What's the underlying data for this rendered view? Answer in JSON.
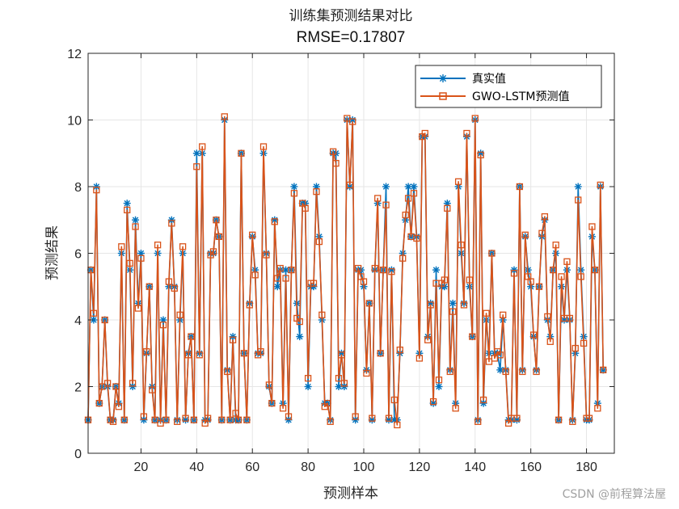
{
  "watermark": "CSDN @前程算法屋",
  "chart_data": {
    "type": "line",
    "title": "训练集预测结果对比",
    "subtitle": "RMSE=0.17807",
    "xlabel": "预测样本",
    "ylabel": "预测结果",
    "xlim": [
      1,
      190
    ],
    "ylim": [
      0,
      12
    ],
    "xticks": [
      20,
      40,
      60,
      80,
      100,
      120,
      140,
      160,
      180
    ],
    "yticks": [
      0,
      2,
      4,
      6,
      8,
      10,
      12
    ],
    "grid": true,
    "legend_position": "top-right",
    "colors": {
      "actual": "#0072BD",
      "predicted": "#D95319",
      "grid": "#e6e6e6",
      "axis": "#262626"
    },
    "series": [
      {
        "name": "真实值",
        "marker": "asterisk",
        "values": [
          1.0,
          5.5,
          4.0,
          8.0,
          1.5,
          2.0,
          4.0,
          2.0,
          1.0,
          1.0,
          2.0,
          1.5,
          6.0,
          1.0,
          7.5,
          5.5,
          2.0,
          7.0,
          4.5,
          6.0,
          1.0,
          3.0,
          5.0,
          2.0,
          1.0,
          6.0,
          1.0,
          4.0,
          1.0,
          5.0,
          7.0,
          5.0,
          1.0,
          4.0,
          6.0,
          1.0,
          3.0,
          3.5,
          1.0,
          9.0,
          3.0,
          9.0,
          1.0,
          1.0,
          6.0,
          6.0,
          7.0,
          6.5,
          1.0,
          10.0,
          2.5,
          1.0,
          3.5,
          1.0,
          1.0,
          9.0,
          3.0,
          1.0,
          4.5,
          6.5,
          5.5,
          3.0,
          3.0,
          9.0,
          6.0,
          2.0,
          1.5,
          7.0,
          5.0,
          5.5,
          1.5,
          5.5,
          1.0,
          5.5,
          8.0,
          4.5,
          3.5,
          7.5,
          7.5,
          2.0,
          5.0,
          5.0,
          8.0,
          6.5,
          4.0,
          1.5,
          1.5,
          1.0,
          9.0,
          9.0,
          2.0,
          3.0,
          2.0,
          10.0,
          8.0,
          10.0,
          1.0,
          5.5,
          5.5,
          5.0,
          2.5,
          4.5,
          1.0,
          5.5,
          7.5,
          3.0,
          5.5,
          8.0,
          1.0,
          5.5,
          1.0,
          1.0,
          3.0,
          6.0,
          7.0,
          8.0,
          6.5,
          8.0,
          6.5,
          3.0,
          9.5,
          9.5,
          3.5,
          4.5,
          1.5,
          5.5,
          2.0,
          5.0,
          5.0,
          7.5,
          2.5,
          4.5,
          1.5,
          8.0,
          6.0,
          4.5,
          9.5,
          5.0,
          3.5,
          10.0,
          1.0,
          9.0,
          1.5,
          4.0,
          3.0,
          6.0,
          3.0,
          3.0,
          2.5,
          4.0,
          2.5,
          1.0,
          1.0,
          5.5,
          1.0,
          8.0,
          2.5,
          6.5,
          5.5,
          5.0,
          3.5,
          2.5,
          5.0,
          6.5,
          7.0,
          4.0,
          3.5,
          5.5,
          6.0,
          1.0,
          5.0,
          4.0,
          5.5,
          4.0,
          1.0,
          3.0,
          8.0,
          5.5,
          3.5,
          1.0,
          1.0,
          6.5,
          5.5,
          1.5,
          8.0,
          2.5
        ]
      },
      {
        "name": "GWO-LSTM预测值",
        "marker": "square",
        "values": [
          1.0,
          5.5,
          4.2,
          7.9,
          1.5,
          2.0,
          4.0,
          2.1,
          1.0,
          0.95,
          2.0,
          1.4,
          6.2,
          1.0,
          7.3,
          5.7,
          2.1,
          6.8,
          4.35,
          5.85,
          1.1,
          3.05,
          5.0,
          1.9,
          1.0,
          6.25,
          0.9,
          3.85,
          1.0,
          5.15,
          6.9,
          4.95,
          0.95,
          4.15,
          6.2,
          1.05,
          2.95,
          3.5,
          1.0,
          8.6,
          2.95,
          9.2,
          0.9,
          1.05,
          5.95,
          6.05,
          7.0,
          6.5,
          1.0,
          10.1,
          2.45,
          1.0,
          3.4,
          1.2,
          1.0,
          9.0,
          3.0,
          1.0,
          4.45,
          6.55,
          5.35,
          2.95,
          3.05,
          9.2,
          5.95,
          2.05,
          1.5,
          6.95,
          5.25,
          5.55,
          1.35,
          5.25,
          1.1,
          5.5,
          7.8,
          4.05,
          3.95,
          7.5,
          7.35,
          2.25,
          5.1,
          5.1,
          7.85,
          6.35,
          4.15,
          1.4,
          1.5,
          0.95,
          9.05,
          8.7,
          2.25,
          2.95,
          2.1,
          10.05,
          8.05,
          9.95,
          1.1,
          5.55,
          5.3,
          5.15,
          2.4,
          4.5,
          1.05,
          5.55,
          7.65,
          3.0,
          5.5,
          7.45,
          1.05,
          5.45,
          1.6,
          0.85,
          3.1,
          5.85,
          7.15,
          7.65,
          6.5,
          7.8,
          6.45,
          2.85,
          9.5,
          9.6,
          3.4,
          4.45,
          1.55,
          5.1,
          2.2,
          5.1,
          5.2,
          7.35,
          2.45,
          4.25,
          1.35,
          8.15,
          6.25,
          4.45,
          9.6,
          5.2,
          3.5,
          10.05,
          0.95,
          8.95,
          1.6,
          4.2,
          2.75,
          6.0,
          2.85,
          3.05,
          2.95,
          4.15,
          2.45,
          0.9,
          1.05,
          5.4,
          1.05,
          8.0,
          2.45,
          6.55,
          5.3,
          5.15,
          3.55,
          2.45,
          5.0,
          6.6,
          7.1,
          4.1,
          3.35,
          5.5,
          6.25,
          1.0,
          5.3,
          4.05,
          5.75,
          4.05,
          0.95,
          3.15,
          7.6,
          5.3,
          3.3,
          1.05,
          1.05,
          6.8,
          5.5,
          1.35,
          8.05,
          2.5
        ]
      }
    ]
  }
}
